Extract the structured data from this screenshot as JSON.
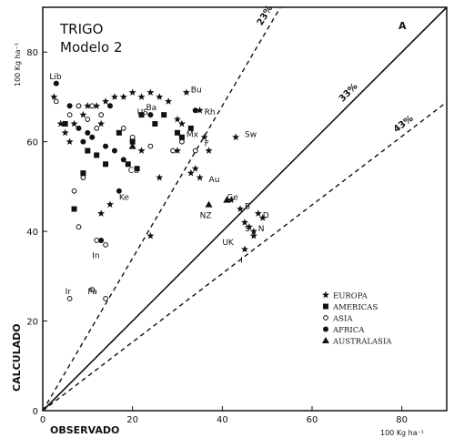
{
  "chart_data": {
    "type": "scatter",
    "title": "TRIGO",
    "subtitle": "Modelo 2",
    "corner_label": "A",
    "xlabel": "OBSERVADO",
    "ylabel": "CALCULADO",
    "x_unit": "100 Kg ha⁻¹",
    "y_unit": "100 Kg ha⁻¹",
    "xlim": [
      0,
      90
    ],
    "ylim": [
      0,
      90
    ],
    "xticks": [
      0,
      20,
      40,
      60,
      80
    ],
    "yticks": [
      0,
      20,
      40,
      60,
      80
    ],
    "grid": false,
    "legend_position": "bottom-right",
    "reference_lines": [
      {
        "label": "",
        "slope": 1,
        "style": "solid"
      },
      {
        "label": "33%",
        "slope": 1,
        "style": "solid",
        "note": "label on identity line"
      },
      {
        "label": "23%",
        "slope": 1.7,
        "style": "dashed"
      },
      {
        "label": "43%",
        "slope": 0.765,
        "style": "dashed"
      }
    ],
    "series": [
      {
        "name": "EUROPA",
        "marker": "star",
        "points": [
          [
            2.5,
            70
          ],
          [
            4,
            64
          ],
          [
            5,
            62
          ],
          [
            6,
            60
          ],
          [
            7,
            64
          ],
          [
            9,
            66
          ],
          [
            10,
            68
          ],
          [
            12,
            68
          ],
          [
            13,
            64
          ],
          [
            14,
            69
          ],
          [
            16,
            70
          ],
          [
            18,
            70
          ],
          [
            20,
            71
          ],
          [
            22,
            70
          ],
          [
            24,
            71
          ],
          [
            26,
            70
          ],
          [
            28,
            69
          ],
          [
            30,
            65
          ],
          [
            31,
            64
          ],
          [
            32,
            71
          ],
          [
            15,
            46
          ],
          [
            13,
            44
          ],
          [
            24,
            39
          ],
          [
            35,
            67
          ],
          [
            36,
            61
          ],
          [
            37,
            58
          ],
          [
            33,
            53
          ],
          [
            34,
            54
          ],
          [
            35,
            52
          ],
          [
            43,
            61
          ],
          [
            42,
            47
          ],
          [
            44,
            45
          ],
          [
            45,
            42
          ],
          [
            46,
            41
          ],
          [
            47,
            40
          ],
          [
            48,
            44
          ],
          [
            49,
            43
          ],
          [
            47,
            39
          ],
          [
            45,
            36
          ],
          [
            30,
            58
          ],
          [
            26,
            52
          ],
          [
            22,
            58
          ]
        ]
      },
      {
        "name": "AMERICAS",
        "marker": "square",
        "points": [
          [
            5,
            64
          ],
          [
            7,
            45
          ],
          [
            9,
            53
          ],
          [
            10,
            58
          ],
          [
            12,
            57
          ],
          [
            14,
            55
          ],
          [
            17,
            62
          ],
          [
            19,
            55
          ],
          [
            20,
            60
          ],
          [
            22,
            66
          ],
          [
            25,
            64
          ],
          [
            27,
            66
          ],
          [
            30,
            62
          ],
          [
            31,
            61
          ],
          [
            33,
            63
          ],
          [
            21,
            54
          ]
        ]
      },
      {
        "name": "ASIA",
        "marker": "circle-open",
        "points": [
          [
            3,
            69
          ],
          [
            6,
            66
          ],
          [
            8,
            68
          ],
          [
            10,
            65
          ],
          [
            11,
            68
          ],
          [
            12,
            63
          ],
          [
            13,
            66
          ],
          [
            9,
            52
          ],
          [
            7,
            49
          ],
          [
            8,
            41
          ],
          [
            12,
            38
          ],
          [
            14,
            37
          ],
          [
            11,
            27
          ],
          [
            14,
            25
          ],
          [
            6,
            25
          ],
          [
            18,
            63
          ],
          [
            20,
            61
          ],
          [
            24,
            59
          ],
          [
            29,
            58
          ],
          [
            31,
            60
          ],
          [
            34,
            58
          ]
        ]
      },
      {
        "name": "AFRICA",
        "marker": "circle-filled",
        "points": [
          [
            3,
            73
          ],
          [
            6,
            68
          ],
          [
            8,
            63
          ],
          [
            9,
            60
          ],
          [
            10,
            62
          ],
          [
            11,
            61
          ],
          [
            14,
            59
          ],
          [
            16,
            58
          ],
          [
            17,
            49
          ],
          [
            13,
            38
          ],
          [
            15,
            68
          ],
          [
            18,
            56
          ],
          [
            24,
            66
          ],
          [
            34,
            67
          ]
        ]
      },
      {
        "name": "AUSTRALASIA",
        "marker": "triangle",
        "points": [
          [
            37,
            46
          ],
          [
            20,
            59
          ],
          [
            41,
            47
          ]
        ]
      }
    ],
    "annotations": [
      {
        "text": "Lib",
        "x": 1.5,
        "y": 74
      },
      {
        "text": "Bu",
        "x": 33,
        "y": 71
      },
      {
        "text": "US",
        "x": 21,
        "y": 66
      },
      {
        "text": "Ba",
        "x": 23,
        "y": 67
      },
      {
        "text": "Rh",
        "x": 36,
        "y": 66
      },
      {
        "text": "Mx",
        "x": 32,
        "y": 61
      },
      {
        "text": "Sw",
        "x": 45,
        "y": 61
      },
      {
        "text": "F",
        "x": 36,
        "y": 59
      },
      {
        "text": "Ca",
        "x": 19,
        "y": 53
      },
      {
        "text": "Au",
        "x": 37,
        "y": 51
      },
      {
        "text": "Ke",
        "x": 17,
        "y": 47
      },
      {
        "text": "Ge",
        "x": 41,
        "y": 47
      },
      {
        "text": "NZ",
        "x": 35,
        "y": 43
      },
      {
        "text": "B",
        "x": 45,
        "y": 45
      },
      {
        "text": "D",
        "x": 49,
        "y": 43
      },
      {
        "text": "S",
        "x": 45,
        "y": 40
      },
      {
        "text": "N",
        "x": 48,
        "y": 40
      },
      {
        "text": "UK",
        "x": 40,
        "y": 37
      },
      {
        "text": "I",
        "x": 44,
        "y": 33
      },
      {
        "text": "In",
        "x": 11,
        "y": 34
      },
      {
        "text": "Ir",
        "x": 5,
        "y": 26
      },
      {
        "text": "Pa",
        "x": 10,
        "y": 26
      }
    ]
  }
}
